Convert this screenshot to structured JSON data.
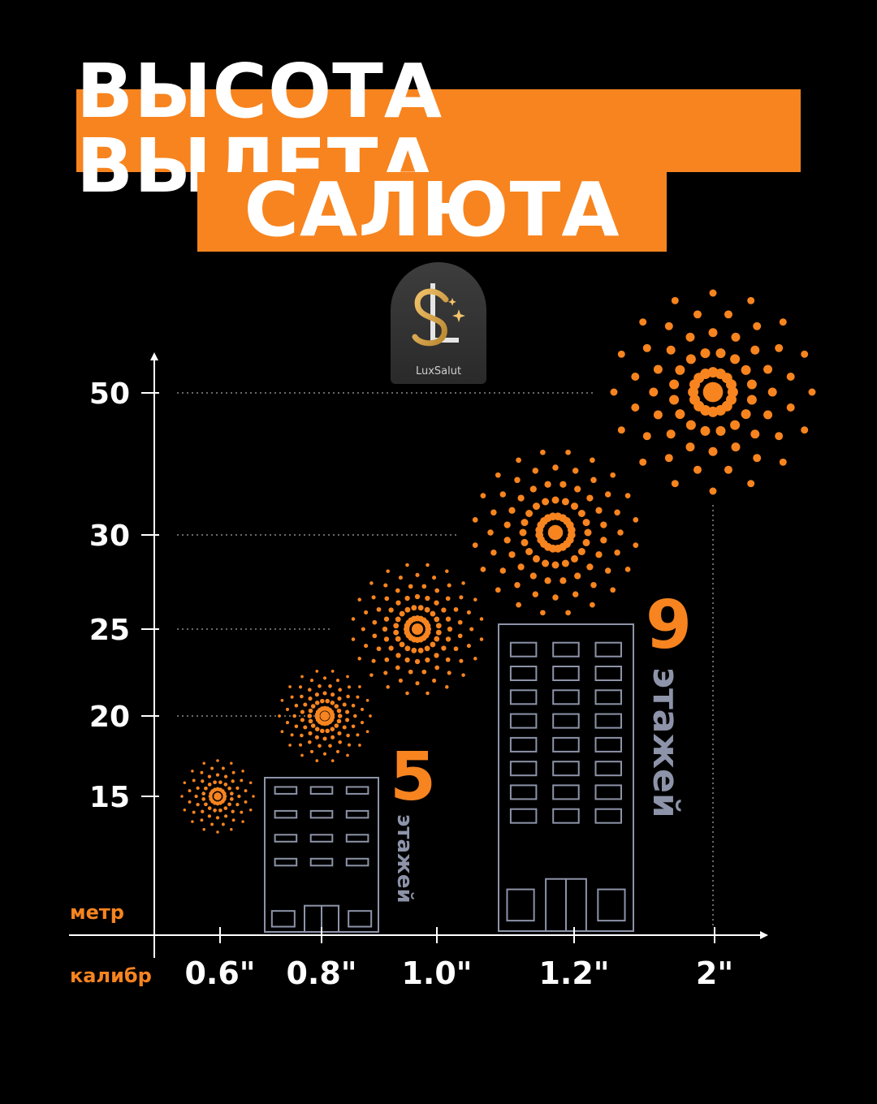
{
  "title": {
    "line1": "ВЫСОТА ВЫЛЕТА",
    "line2": "САЛЮТА"
  },
  "logo": {
    "name": "LuxSalut",
    "monogram": "SL"
  },
  "colors": {
    "accent": "#f7841f",
    "building": "#8d93a8",
    "background": "#000000"
  },
  "chart_data": {
    "type": "scatter",
    "ylabel": "метр",
    "xlabel": "калибр",
    "y_ticks": [
      "15",
      "20",
      "25",
      "30",
      "50"
    ],
    "x_ticks": [
      "0.6\"",
      "0.8\"",
      "1.0\"",
      "1.2\"",
      "2\""
    ],
    "points": [
      {
        "caliber": "0.6\"",
        "height_m": 15
      },
      {
        "caliber": "0.8\"",
        "height_m": 20
      },
      {
        "caliber": "1.0\"",
        "height_m": 25
      },
      {
        "caliber": "1.2\"",
        "height_m": 30
      },
      {
        "caliber": "2\"",
        "height_m": 50
      }
    ],
    "buildings": [
      {
        "floors": "5",
        "word": "этажей"
      },
      {
        "floors": "9",
        "word": "этажей"
      }
    ]
  }
}
